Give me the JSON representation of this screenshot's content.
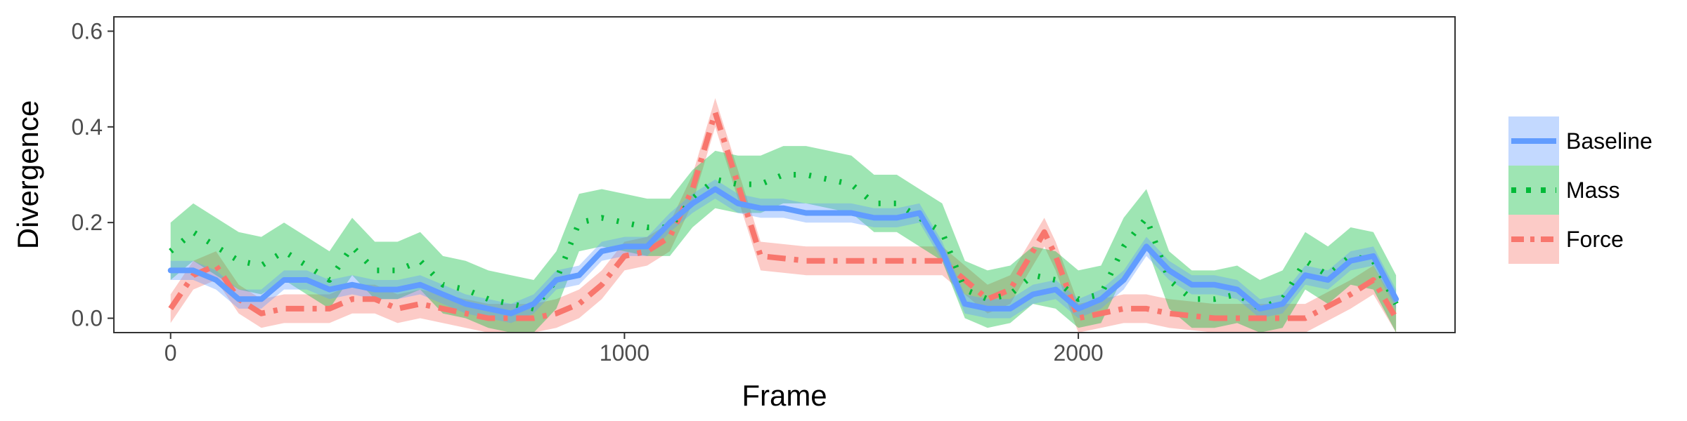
{
  "chart_data": {
    "type": "line",
    "xlabel": "Frame",
    "ylabel": "Divergence",
    "xlim": [
      -125,
      2830
    ],
    "ylim": [
      -0.03,
      0.63
    ],
    "x_ticks": [
      0,
      1000,
      2000
    ],
    "x_tick_labels": [
      "0",
      "1000",
      "2000"
    ],
    "y_ticks": [
      0.0,
      0.2,
      0.4,
      0.6
    ],
    "y_tick_labels": [
      "0.0",
      "0.2",
      "0.4",
      "0.6"
    ],
    "grid": false,
    "legend_position": "right",
    "series": [
      {
        "name": "Force",
        "color": "#F8766D",
        "line_style": "dashdot",
        "x": [
          0,
          50,
          100,
          150,
          200,
          250,
          300,
          350,
          400,
          450,
          500,
          550,
          600,
          650,
          700,
          750,
          800,
          850,
          900,
          950,
          1000,
          1050,
          1100,
          1150,
          1200,
          1250,
          1300,
          1400,
          1500,
          1600,
          1700,
          1750,
          1800,
          1850,
          1900,
          1925,
          1950,
          2000,
          2050,
          2100,
          2150,
          2200,
          2300,
          2400,
          2500,
          2600,
          2650,
          2700
        ],
        "y": [
          0.02,
          0.09,
          0.11,
          0.04,
          0.01,
          0.02,
          0.02,
          0.02,
          0.04,
          0.04,
          0.02,
          0.03,
          0.02,
          0.01,
          0.0,
          0.0,
          0.0,
          0.01,
          0.03,
          0.07,
          0.13,
          0.14,
          0.17,
          0.27,
          0.43,
          0.28,
          0.13,
          0.12,
          0.12,
          0.12,
          0.12,
          0.08,
          0.04,
          0.06,
          0.14,
          0.18,
          0.13,
          0.0,
          0.01,
          0.02,
          0.02,
          0.01,
          0.0,
          0.0,
          0.0,
          0.05,
          0.08,
          0.0
        ],
        "band_halfwidth": 0.03
      },
      {
        "name": "Mass",
        "color": "#00BA38",
        "line_style": "dotted",
        "x": [
          0,
          50,
          100,
          150,
          200,
          250,
          300,
          350,
          400,
          450,
          500,
          550,
          600,
          650,
          700,
          750,
          800,
          850,
          900,
          950,
          1000,
          1050,
          1100,
          1150,
          1200,
          1250,
          1300,
          1350,
          1400,
          1450,
          1500,
          1550,
          1600,
          1650,
          1700,
          1750,
          1800,
          1850,
          1900,
          1950,
          2000,
          2050,
          2100,
          2150,
          2200,
          2250,
          2300,
          2350,
          2400,
          2450,
          2500,
          2550,
          2600,
          2650,
          2700
        ],
        "y": [
          0.14,
          0.18,
          0.15,
          0.12,
          0.11,
          0.14,
          0.11,
          0.08,
          0.15,
          0.1,
          0.1,
          0.12,
          0.07,
          0.06,
          0.04,
          0.03,
          0.02,
          0.08,
          0.2,
          0.21,
          0.2,
          0.19,
          0.19,
          0.25,
          0.29,
          0.28,
          0.28,
          0.3,
          0.3,
          0.29,
          0.28,
          0.24,
          0.24,
          0.21,
          0.18,
          0.06,
          0.04,
          0.05,
          0.09,
          0.08,
          0.04,
          0.05,
          0.15,
          0.21,
          0.08,
          0.04,
          0.04,
          0.05,
          0.02,
          0.04,
          0.12,
          0.09,
          0.13,
          0.12,
          0.03
        ],
        "band_halfwidth": 0.06
      },
      {
        "name": "Baseline",
        "color": "#619CFF",
        "line_style": "solid",
        "x": [
          0,
          50,
          100,
          150,
          200,
          250,
          300,
          350,
          400,
          450,
          500,
          550,
          600,
          650,
          700,
          750,
          800,
          850,
          900,
          950,
          1000,
          1050,
          1100,
          1150,
          1200,
          1250,
          1300,
          1350,
          1400,
          1450,
          1500,
          1550,
          1600,
          1650,
          1700,
          1750,
          1800,
          1850,
          1900,
          1950,
          2000,
          2050,
          2100,
          2150,
          2200,
          2250,
          2300,
          2350,
          2400,
          2450,
          2500,
          2550,
          2600,
          2650,
          2700
        ],
        "y": [
          0.1,
          0.1,
          0.08,
          0.04,
          0.04,
          0.08,
          0.08,
          0.06,
          0.07,
          0.06,
          0.06,
          0.07,
          0.05,
          0.03,
          0.02,
          0.01,
          0.03,
          0.08,
          0.09,
          0.14,
          0.15,
          0.15,
          0.2,
          0.24,
          0.27,
          0.24,
          0.23,
          0.23,
          0.22,
          0.22,
          0.22,
          0.21,
          0.21,
          0.22,
          0.14,
          0.03,
          0.02,
          0.02,
          0.05,
          0.06,
          0.02,
          0.04,
          0.08,
          0.15,
          0.1,
          0.07,
          0.07,
          0.06,
          0.02,
          0.03,
          0.09,
          0.08,
          0.12,
          0.13,
          0.04
        ],
        "band_halfwidth": 0.02
      }
    ],
    "legend": [
      "Baseline",
      "Mass",
      "Force"
    ]
  }
}
